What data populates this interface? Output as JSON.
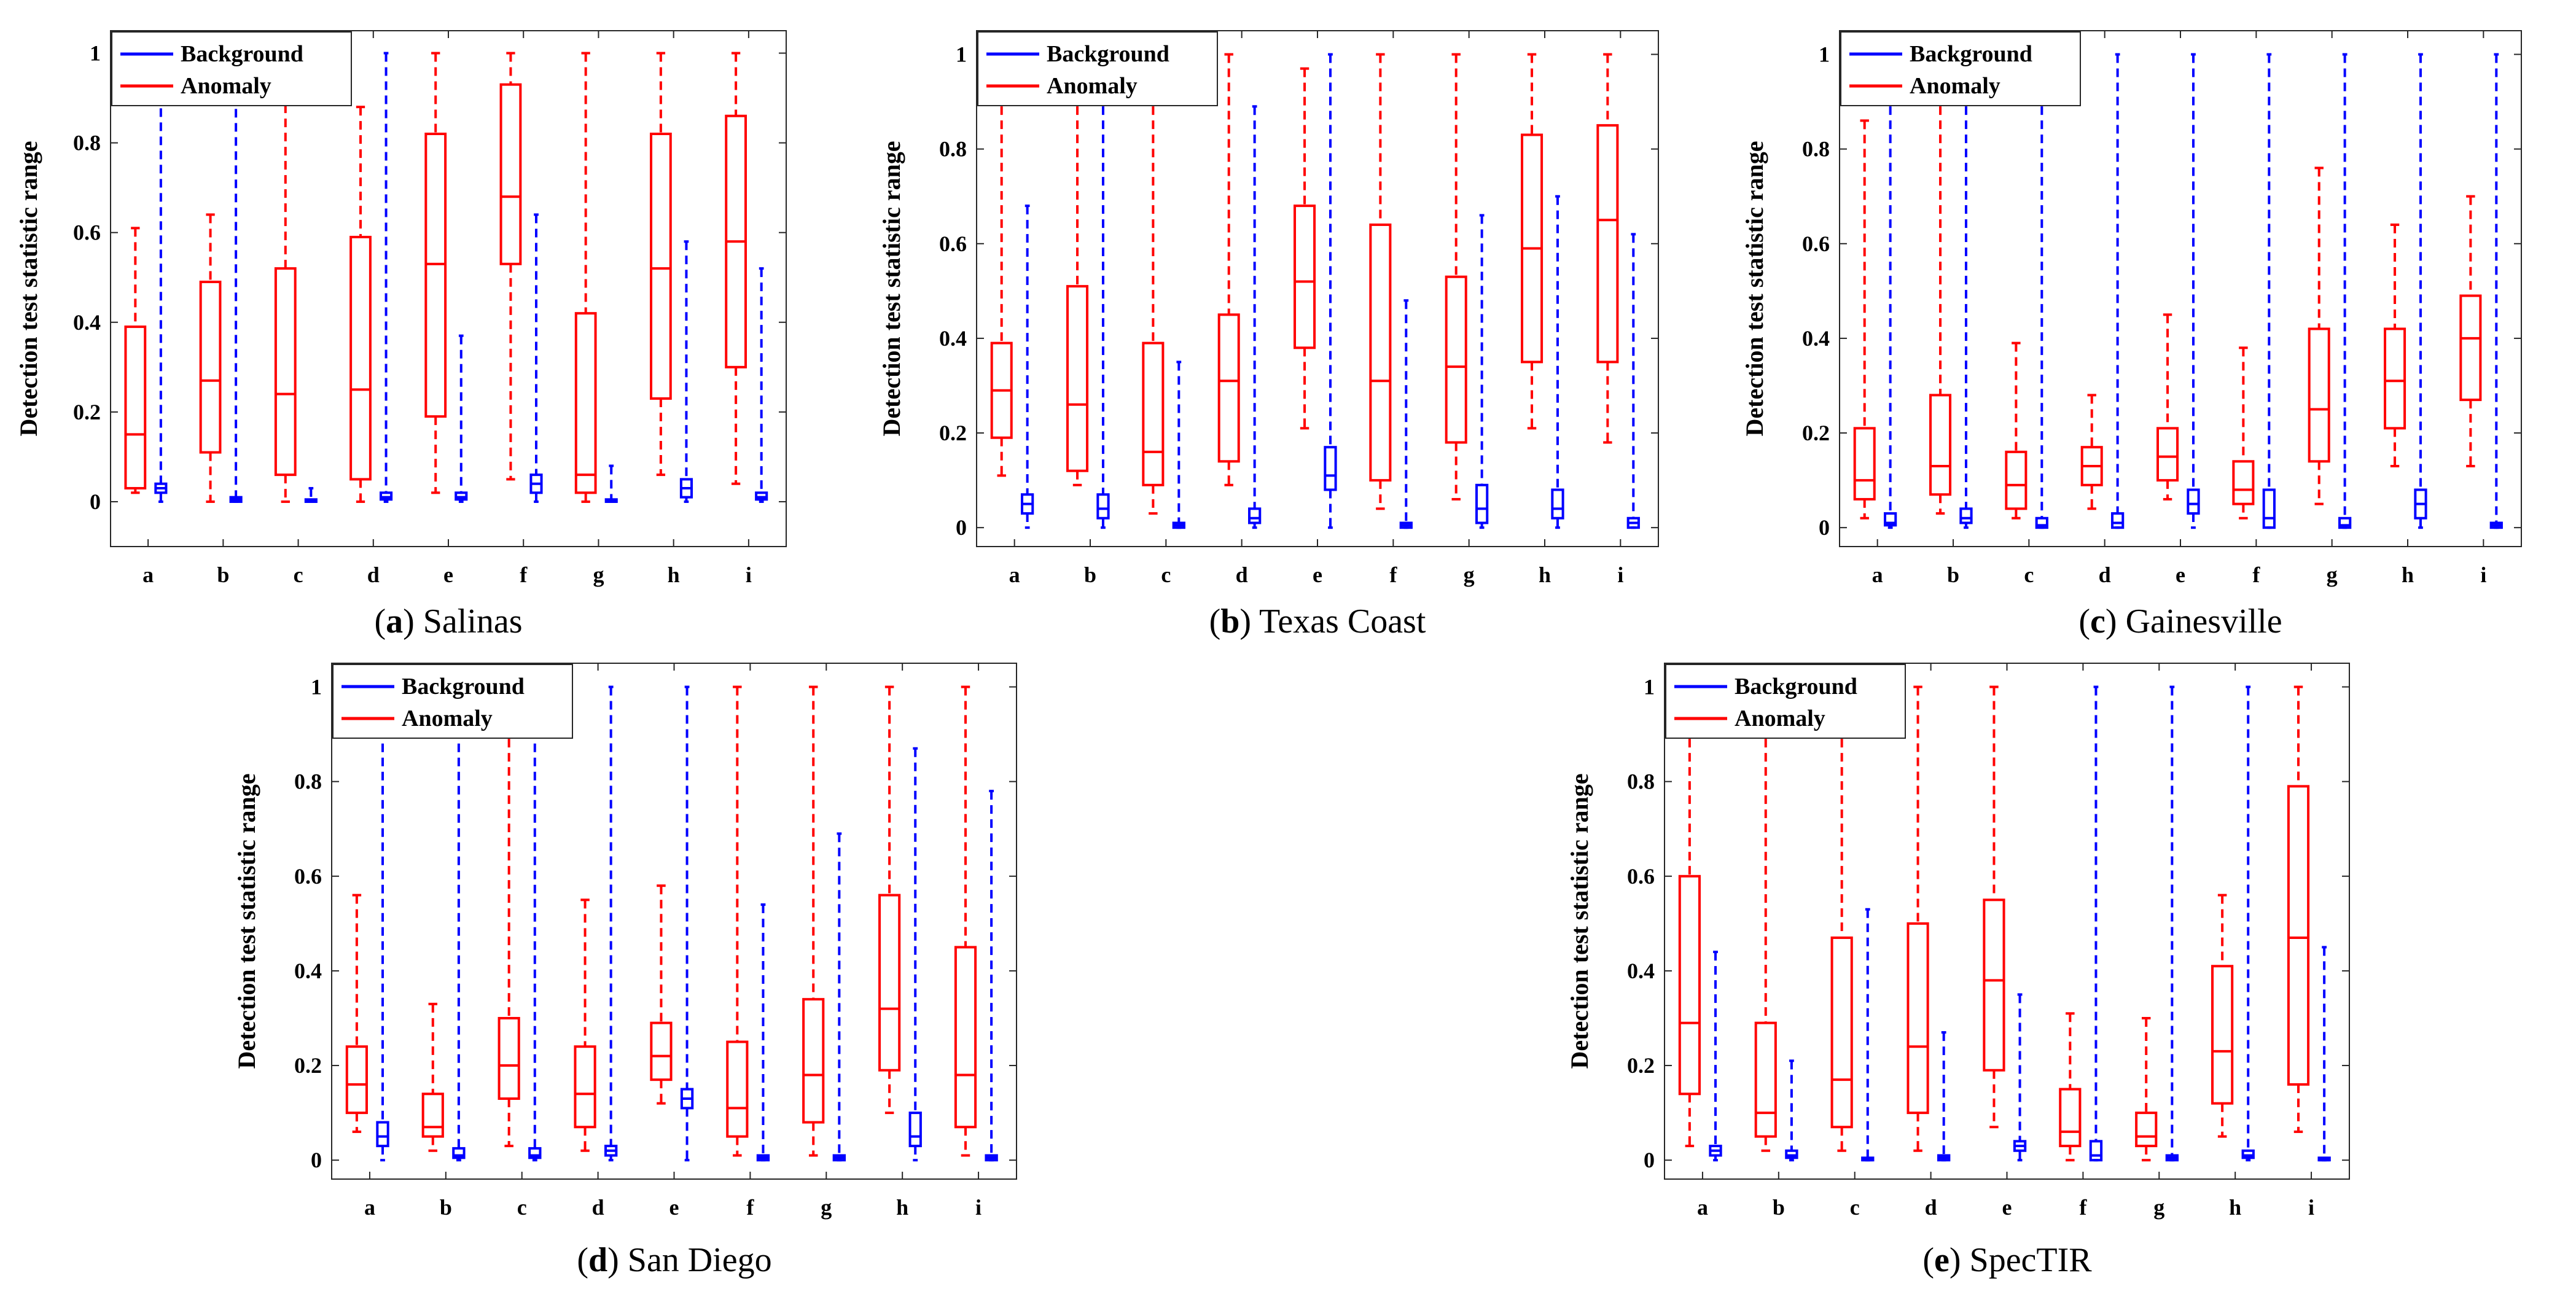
{
  "figure": {
    "legend": {
      "background": "Background",
      "anomaly": "Anomaly"
    },
    "colors": {
      "background": "#0000ff",
      "anomaly": "#ff0000"
    }
  },
  "chart_data": [
    {
      "type": "box",
      "caption_letter": "a",
      "caption_name": "Salinas",
      "ylabel": "Detection test statistic range",
      "ylim": [
        -0.1,
        1.05
      ],
      "yticks": [
        0,
        0.2,
        0.4,
        0.6,
        0.8,
        1
      ],
      "ytick_labels": [
        "0",
        "0.2",
        "0.4",
        "0.6",
        "0.8",
        "1"
      ],
      "categories": [
        "a",
        "b",
        "c",
        "d",
        "e",
        "f",
        "g",
        "h",
        "i"
      ],
      "series": [
        {
          "name": "Anomaly",
          "boxes": [
            {
              "min": 0.02,
              "q1": 0.03,
              "median": 0.15,
              "q3": 0.39,
              "max": 0.61
            },
            {
              "min": 0.0,
              "q1": 0.11,
              "median": 0.27,
              "q3": 0.49,
              "max": 0.64
            },
            {
              "min": 0.0,
              "q1": 0.06,
              "median": 0.24,
              "q3": 0.52,
              "max": 0.98
            },
            {
              "min": 0.0,
              "q1": 0.05,
              "median": 0.25,
              "q3": 0.59,
              "max": 0.88
            },
            {
              "min": 0.02,
              "q1": 0.19,
              "median": 0.53,
              "q3": 0.82,
              "max": 1.0
            },
            {
              "min": 0.05,
              "q1": 0.53,
              "median": 0.68,
              "q3": 0.93,
              "max": 1.0
            },
            {
              "min": 0.0,
              "q1": 0.02,
              "median": 0.06,
              "q3": 0.42,
              "max": 1.0
            },
            {
              "min": 0.06,
              "q1": 0.23,
              "median": 0.52,
              "q3": 0.82,
              "max": 1.0
            },
            {
              "min": 0.04,
              "q1": 0.3,
              "median": 0.58,
              "q3": 0.86,
              "max": 1.0
            }
          ]
        },
        {
          "name": "Background",
          "boxes": [
            {
              "min": 0.0,
              "q1": 0.02,
              "median": 0.03,
              "q3": 0.04,
              "max": 0.94
            },
            {
              "min": 0.0,
              "q1": 0.0,
              "median": 0.005,
              "q3": 0.01,
              "max": 0.97
            },
            {
              "min": 0.0,
              "q1": 0.0,
              "median": 0.0,
              "q3": 0.005,
              "max": 0.03
            },
            {
              "min": 0.0,
              "q1": 0.005,
              "median": 0.01,
              "q3": 0.02,
              "max": 1.0
            },
            {
              "min": 0.0,
              "q1": 0.005,
              "median": 0.01,
              "q3": 0.02,
              "max": 0.37
            },
            {
              "min": 0.0,
              "q1": 0.02,
              "median": 0.04,
              "q3": 0.06,
              "max": 0.64
            },
            {
              "min": 0.0,
              "q1": 0.0,
              "median": 0.0,
              "q3": 0.005,
              "max": 0.08
            },
            {
              "min": 0.0,
              "q1": 0.01,
              "median": 0.03,
              "q3": 0.05,
              "max": 0.58
            },
            {
              "min": 0.0,
              "q1": 0.005,
              "median": 0.01,
              "q3": 0.02,
              "max": 0.52
            }
          ]
        }
      ]
    },
    {
      "type": "box",
      "caption_letter": "b",
      "caption_name": "Texas Coast",
      "ylabel": "Detection test statistic range",
      "ylim": [
        -0.04,
        1.05
      ],
      "yticks": [
        0,
        0.2,
        0.4,
        0.6,
        0.8,
        1
      ],
      "ytick_labels": [
        "0",
        "0.2",
        "0.4",
        "0.6",
        "0.8",
        "1"
      ],
      "categories": [
        "a",
        "b",
        "c",
        "d",
        "e",
        "f",
        "g",
        "h",
        "i"
      ],
      "series": [
        {
          "name": "Anomaly",
          "boxes": [
            {
              "min": 0.11,
              "q1": 0.19,
              "median": 0.29,
              "q3": 0.39,
              "max": 0.95
            },
            {
              "min": 0.09,
              "q1": 0.12,
              "median": 0.26,
              "q3": 0.51,
              "max": 0.95
            },
            {
              "min": 0.03,
              "q1": 0.09,
              "median": 0.16,
              "q3": 0.39,
              "max": 0.95
            },
            {
              "min": 0.09,
              "q1": 0.14,
              "median": 0.31,
              "q3": 0.45,
              "max": 1.0
            },
            {
              "min": 0.21,
              "q1": 0.38,
              "median": 0.52,
              "q3": 0.68,
              "max": 0.97
            },
            {
              "min": 0.04,
              "q1": 0.1,
              "median": 0.31,
              "q3": 0.64,
              "max": 1.0
            },
            {
              "min": 0.06,
              "q1": 0.18,
              "median": 0.34,
              "q3": 0.53,
              "max": 1.0
            },
            {
              "min": 0.21,
              "q1": 0.35,
              "median": 0.59,
              "q3": 0.83,
              "max": 1.0
            },
            {
              "min": 0.18,
              "q1": 0.35,
              "median": 0.65,
              "q3": 0.85,
              "max": 1.0
            }
          ]
        },
        {
          "name": "Background",
          "boxes": [
            {
              "min": 0.0,
              "q1": 0.03,
              "median": 0.05,
              "q3": 0.07,
              "max": 0.68
            },
            {
              "min": 0.0,
              "q1": 0.02,
              "median": 0.04,
              "q3": 0.07,
              "max": 0.95
            },
            {
              "min": 0.0,
              "q1": 0.0,
              "median": 0.005,
              "q3": 0.01,
              "max": 0.35
            },
            {
              "min": 0.0,
              "q1": 0.01,
              "median": 0.02,
              "q3": 0.04,
              "max": 0.89
            },
            {
              "min": 0.0,
              "q1": 0.08,
              "median": 0.11,
              "q3": 0.17,
              "max": 1.0
            },
            {
              "min": 0.0,
              "q1": 0.0,
              "median": 0.005,
              "q3": 0.01,
              "max": 0.48
            },
            {
              "min": 0.0,
              "q1": 0.01,
              "median": 0.04,
              "q3": 0.09,
              "max": 0.66
            },
            {
              "min": 0.0,
              "q1": 0.02,
              "median": 0.04,
              "q3": 0.08,
              "max": 0.7
            },
            {
              "min": 0.0,
              "q1": 0.0,
              "median": 0.01,
              "q3": 0.02,
              "max": 0.62
            }
          ]
        }
      ]
    },
    {
      "type": "box",
      "caption_letter": "c",
      "caption_name": "Gainesville",
      "ylabel": "Detection test statistic range",
      "ylim": [
        -0.04,
        1.05
      ],
      "yticks": [
        0,
        0.2,
        0.4,
        0.6,
        0.8,
        1
      ],
      "ytick_labels": [
        "0",
        "0.2",
        "0.4",
        "0.6",
        "0.8",
        "1"
      ],
      "categories": [
        "a",
        "b",
        "c",
        "d",
        "e",
        "f",
        "g",
        "h",
        "i"
      ],
      "series": [
        {
          "name": "Anomaly",
          "boxes": [
            {
              "min": 0.02,
              "q1": 0.06,
              "median": 0.1,
              "q3": 0.21,
              "max": 0.86
            },
            {
              "min": 0.03,
              "q1": 0.07,
              "median": 0.13,
              "q3": 0.28,
              "max": 0.95
            },
            {
              "min": 0.02,
              "q1": 0.04,
              "median": 0.09,
              "q3": 0.16,
              "max": 0.39
            },
            {
              "min": 0.04,
              "q1": 0.09,
              "median": 0.13,
              "q3": 0.17,
              "max": 0.28
            },
            {
              "min": 0.06,
              "q1": 0.1,
              "median": 0.15,
              "q3": 0.21,
              "max": 0.45
            },
            {
              "min": 0.02,
              "q1": 0.05,
              "median": 0.08,
              "q3": 0.14,
              "max": 0.38
            },
            {
              "min": 0.05,
              "q1": 0.14,
              "median": 0.25,
              "q3": 0.42,
              "max": 0.76
            },
            {
              "min": 0.13,
              "q1": 0.21,
              "median": 0.31,
              "q3": 0.42,
              "max": 0.64
            },
            {
              "min": 0.13,
              "q1": 0.27,
              "median": 0.4,
              "q3": 0.49,
              "max": 0.7
            }
          ]
        },
        {
          "name": "Background",
          "boxes": [
            {
              "min": 0.0,
              "q1": 0.005,
              "median": 0.01,
              "q3": 0.03,
              "max": 0.95
            },
            {
              "min": 0.0,
              "q1": 0.01,
              "median": 0.02,
              "q3": 0.04,
              "max": 0.95
            },
            {
              "min": 0.0,
              "q1": 0.0,
              "median": 0.005,
              "q3": 0.02,
              "max": 0.92
            },
            {
              "min": 0.0,
              "q1": 0.0,
              "median": 0.01,
              "q3": 0.03,
              "max": 1.0
            },
            {
              "min": 0.0,
              "q1": 0.03,
              "median": 0.05,
              "q3": 0.08,
              "max": 1.0
            },
            {
              "min": 0.0,
              "q1": 0.0,
              "median": 0.02,
              "q3": 0.08,
              "max": 1.0
            },
            {
              "min": 0.0,
              "q1": 0.0,
              "median": 0.005,
              "q3": 0.02,
              "max": 1.0
            },
            {
              "min": 0.0,
              "q1": 0.02,
              "median": 0.05,
              "q3": 0.08,
              "max": 1.0
            },
            {
              "min": 0.0,
              "q1": 0.0,
              "median": 0.005,
              "q3": 0.01,
              "max": 1.0
            }
          ]
        }
      ]
    },
    {
      "type": "box",
      "caption_letter": "d",
      "caption_name": "San Diego",
      "ylabel": "Detection test statistic range",
      "ylim": [
        -0.04,
        1.05
      ],
      "yticks": [
        0,
        0.2,
        0.4,
        0.6,
        0.8,
        1
      ],
      "ytick_labels": [
        "0",
        "0.2",
        "0.4",
        "0.6",
        "0.8",
        "1"
      ],
      "categories": [
        "a",
        "b",
        "c",
        "d",
        "e",
        "f",
        "g",
        "h",
        "i"
      ],
      "series": [
        {
          "name": "Anomaly",
          "boxes": [
            {
              "min": 0.06,
              "q1": 0.1,
              "median": 0.16,
              "q3": 0.24,
              "max": 0.56
            },
            {
              "min": 0.02,
              "q1": 0.05,
              "median": 0.07,
              "q3": 0.14,
              "max": 0.33
            },
            {
              "min": 0.03,
              "q1": 0.13,
              "median": 0.2,
              "q3": 0.3,
              "max": 0.95
            },
            {
              "min": 0.02,
              "q1": 0.07,
              "median": 0.14,
              "q3": 0.24,
              "max": 0.55
            },
            {
              "min": 0.12,
              "q1": 0.17,
              "median": 0.22,
              "q3": 0.29,
              "max": 0.58
            },
            {
              "min": 0.01,
              "q1": 0.05,
              "median": 0.11,
              "q3": 0.25,
              "max": 1.0
            },
            {
              "min": 0.01,
              "q1": 0.08,
              "median": 0.18,
              "q3": 0.34,
              "max": 1.0
            },
            {
              "min": 0.1,
              "q1": 0.19,
              "median": 0.32,
              "q3": 0.56,
              "max": 1.0
            },
            {
              "min": 0.01,
              "q1": 0.07,
              "median": 0.18,
              "q3": 0.45,
              "max": 1.0
            }
          ]
        },
        {
          "name": "Background",
          "boxes": [
            {
              "min": 0.0,
              "q1": 0.03,
              "median": 0.05,
              "q3": 0.08,
              "max": 0.94
            },
            {
              "min": 0.0,
              "q1": 0.005,
              "median": 0.01,
              "q3": 0.025,
              "max": 0.94
            },
            {
              "min": 0.0,
              "q1": 0.005,
              "median": 0.01,
              "q3": 0.025,
              "max": 0.94
            },
            {
              "min": 0.0,
              "q1": 0.01,
              "median": 0.02,
              "q3": 0.03,
              "max": 1.0
            },
            {
              "min": 0.0,
              "q1": 0.11,
              "median": 0.13,
              "q3": 0.15,
              "max": 1.0
            },
            {
              "min": 0.0,
              "q1": 0.0,
              "median": 0.005,
              "q3": 0.01,
              "max": 0.54
            },
            {
              "min": 0.0,
              "q1": 0.0,
              "median": 0.005,
              "q3": 0.01,
              "max": 0.69
            },
            {
              "min": 0.0,
              "q1": 0.03,
              "median": 0.05,
              "q3": 0.1,
              "max": 0.87
            },
            {
              "min": 0.0,
              "q1": 0.0,
              "median": 0.005,
              "q3": 0.01,
              "max": 0.78
            }
          ]
        }
      ]
    },
    {
      "type": "box",
      "caption_letter": "e",
      "caption_name": "SpecTIR",
      "ylabel": "Detection test statistic range",
      "ylim": [
        -0.04,
        1.05
      ],
      "yticks": [
        0,
        0.2,
        0.4,
        0.6,
        0.8,
        1
      ],
      "ytick_labels": [
        "0",
        "0.2",
        "0.4",
        "0.6",
        "0.8",
        "1"
      ],
      "categories": [
        "a",
        "b",
        "c",
        "d",
        "e",
        "f",
        "g",
        "h",
        "i"
      ],
      "series": [
        {
          "name": "Anomaly",
          "boxes": [
            {
              "min": 0.03,
              "q1": 0.14,
              "median": 0.29,
              "q3": 0.6,
              "max": 0.95
            },
            {
              "min": 0.02,
              "q1": 0.05,
              "median": 0.1,
              "q3": 0.29,
              "max": 0.95
            },
            {
              "min": 0.02,
              "q1": 0.07,
              "median": 0.17,
              "q3": 0.47,
              "max": 0.95
            },
            {
              "min": 0.02,
              "q1": 0.1,
              "median": 0.24,
              "q3": 0.5,
              "max": 1.0
            },
            {
              "min": 0.07,
              "q1": 0.19,
              "median": 0.38,
              "q3": 0.55,
              "max": 1.0
            },
            {
              "min": 0.0,
              "q1": 0.03,
              "median": 0.06,
              "q3": 0.15,
              "max": 0.31
            },
            {
              "min": 0.0,
              "q1": 0.03,
              "median": 0.05,
              "q3": 0.1,
              "max": 0.3
            },
            {
              "min": 0.05,
              "q1": 0.12,
              "median": 0.23,
              "q3": 0.41,
              "max": 0.56
            },
            {
              "min": 0.06,
              "q1": 0.16,
              "median": 0.47,
              "q3": 0.79,
              "max": 1.0
            }
          ]
        },
        {
          "name": "Background",
          "boxes": [
            {
              "min": 0.0,
              "q1": 0.01,
              "median": 0.02,
              "q3": 0.03,
              "max": 0.44
            },
            {
              "min": 0.0,
              "q1": 0.005,
              "median": 0.01,
              "q3": 0.02,
              "max": 0.21
            },
            {
              "min": 0.0,
              "q1": 0.0,
              "median": 0.0,
              "q3": 0.005,
              "max": 0.53
            },
            {
              "min": 0.0,
              "q1": 0.0,
              "median": 0.005,
              "q3": 0.01,
              "max": 0.27
            },
            {
              "min": 0.0,
              "q1": 0.02,
              "median": 0.03,
              "q3": 0.04,
              "max": 0.35
            },
            {
              "min": 0.0,
              "q1": 0.0,
              "median": 0.01,
              "q3": 0.04,
              "max": 1.0
            },
            {
              "min": 0.0,
              "q1": 0.0,
              "median": 0.005,
              "q3": 0.01,
              "max": 1.0
            },
            {
              "min": 0.0,
              "q1": 0.005,
              "median": 0.01,
              "q3": 0.02,
              "max": 1.0
            },
            {
              "min": 0.0,
              "q1": 0.0,
              "median": 0.0,
              "q3": 0.005,
              "max": 0.45
            }
          ]
        }
      ]
    }
  ]
}
